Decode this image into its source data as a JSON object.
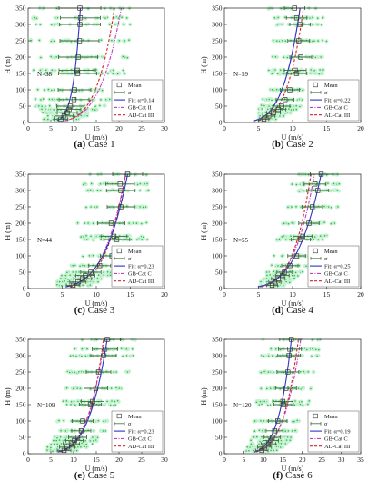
{
  "chart_data": [
    {
      "type": "scatter",
      "caption": {
        "letter": "(a)",
        "text": " Case 1"
      },
      "xlabel": "U (m/s)",
      "ylabel": "H (m)",
      "xlim": [
        0,
        30
      ],
      "ylim": [
        0,
        350
      ],
      "xticks": [
        0,
        5,
        10,
        15,
        20,
        25,
        30
      ],
      "yticks": [
        0,
        50,
        100,
        150,
        200,
        250,
        300,
        350
      ],
      "n_label": "N=38",
      "heights": [
        10,
        20,
        30,
        40,
        50,
        70,
        100,
        150,
        160,
        200,
        250,
        300,
        320,
        350
      ],
      "means": [
        7.2,
        7.9,
        8.6,
        9.0,
        9.3,
        10.1,
        10.2,
        10.9,
        10.8,
        11.0,
        11.3,
        11.4,
        11.5,
        11.4
      ],
      "sigma": [
        1.5,
        2.0,
        2.2,
        2.6,
        3.0,
        3.3,
        3.6,
        4.2,
        4.0,
        4.3,
        4.3,
        4.5,
        4.4,
        4.6
      ],
      "scatter_spread": [
        0,
        23
      ],
      "fit": {
        "alpha": 0.14,
        "u_ref": 11.5
      },
      "gb": {
        "alpha": 0.22,
        "u_ref": 20.5
      },
      "aij": {
        "alpha": 0.2,
        "u_ref": 19.0
      },
      "legend": {
        "position": "bottom-right",
        "mean": "Mean",
        "sigma": "σ",
        "fit": "Fit: α=0.14",
        "gb": "GB-Cat II",
        "aij": "AIJ-Cat III"
      }
    },
    {
      "type": "scatter",
      "caption": {
        "letter": "(b)",
        "text": " Case 2"
      },
      "xlabel": "U (m/s)",
      "ylabel": "H (m)",
      "xlim": [
        0,
        20
      ],
      "ylim": [
        0,
        350
      ],
      "xticks": [
        0,
        5,
        10,
        15,
        20
      ],
      "yticks": [
        0,
        50,
        100,
        150,
        200,
        250,
        300,
        350
      ],
      "n_label": "N=59",
      "heights": [
        10,
        20,
        30,
        40,
        50,
        70,
        100,
        150,
        160,
        200,
        250,
        300,
        320,
        350
      ],
      "means": [
        5.8,
        6.5,
        7.2,
        7.9,
        8.4,
        8.9,
        9.6,
        10.6,
        10.4,
        11.2,
        10.9,
        11.1,
        10.6,
        10.3
      ],
      "sigma": [
        0.7,
        0.9,
        1.0,
        1.1,
        1.2,
        1.3,
        1.4,
        1.5,
        1.6,
        1.6,
        1.6,
        1.5,
        1.5,
        1.5
      ],
      "scatter_spread": [
        5,
        15
      ],
      "fit": {
        "alpha": 0.22,
        "u_ref": 11.1
      },
      "gb": {
        "alpha": 0.22,
        "u_ref": 11.1
      },
      "aij": {
        "alpha": 0.2,
        "u_ref": 11.6
      },
      "legend": {
        "position": "bottom-right",
        "mean": "Mean",
        "sigma": "σ",
        "fit": "Fit: α=0.22",
        "gb": "GB-Cat C",
        "aij": "AIJ-Cat III"
      }
    },
    {
      "type": "scatter",
      "caption": {
        "letter": "(c)",
        "text": " Case 3"
      },
      "xlabel": "U (m/s)",
      "ylabel": "H (m)",
      "xlim": [
        0,
        20
      ],
      "ylim": [
        0,
        350
      ],
      "xticks": [
        0,
        5,
        10,
        15,
        20
      ],
      "yticks": [
        0,
        50,
        100,
        150,
        200,
        250,
        300,
        350
      ],
      "n_label": "N=44",
      "heights": [
        10,
        20,
        30,
        40,
        50,
        70,
        100,
        150,
        160,
        200,
        250,
        300,
        320,
        350
      ],
      "means": [
        6.6,
        7.3,
        8.0,
        8.4,
        9.2,
        10.5,
        12.3,
        13.0,
        12.6,
        12.2,
        13.6,
        13.6,
        13.5,
        14.6
      ],
      "sigma": [
        1.0,
        1.2,
        1.3,
        1.4,
        1.5,
        1.6,
        1.7,
        1.9,
        1.9,
        2.0,
        2.0,
        2.1,
        2.1,
        2.2
      ],
      "scatter_spread": [
        3,
        18
      ],
      "fit": {
        "alpha": 0.23,
        "u_ref": 14.6
      },
      "gb": {
        "alpha": 0.22,
        "u_ref": 14.3
      },
      "aij": {
        "alpha": 0.2,
        "u_ref": 14.3
      },
      "legend": {
        "position": "bottom-right",
        "mean": "Mean",
        "sigma": "σ",
        "fit": "Fit: α=0.23",
        "gb": "GB-Cat C",
        "aij": "AIJ-Cat III"
      }
    },
    {
      "type": "scatter",
      "caption": {
        "letter": "(d)",
        "text": " Case 4"
      },
      "xlabel": "U (m/s)",
      "ylabel": "H (m)",
      "xlim": [
        0,
        20
      ],
      "ylim": [
        0,
        350
      ],
      "xticks": [
        0,
        5,
        10,
        15,
        20
      ],
      "yticks": [
        0,
        50,
        100,
        150,
        200,
        250,
        300,
        350
      ],
      "n_label": "N=55",
      "heights": [
        10,
        20,
        30,
        40,
        50,
        70,
        100,
        150,
        160,
        200,
        250,
        300,
        320,
        350
      ],
      "means": [
        7.0,
        7.4,
        7.9,
        8.5,
        8.8,
        9.6,
        10.6,
        11.2,
        11.5,
        12.4,
        12.9,
        13.7,
        13.3,
        14.2
      ],
      "sigma": [
        0.8,
        0.9,
        1.0,
        1.0,
        1.1,
        1.2,
        1.3,
        1.4,
        1.4,
        1.5,
        1.5,
        1.6,
        1.6,
        1.6
      ],
      "scatter_spread": [
        5,
        17
      ],
      "fit": {
        "alpha": 0.25,
        "u_ref": 14.2
      },
      "gb": {
        "alpha": 0.22,
        "u_ref": 13.2
      },
      "aij": {
        "alpha": 0.2,
        "u_ref": 12.7
      },
      "legend": {
        "position": "bottom-right",
        "mean": "Mean",
        "sigma": "σ",
        "fit": "Fit: α=0.25",
        "gb": "GB-Cat C",
        "aij": "AIJ-Cat III"
      }
    },
    {
      "type": "scatter",
      "caption": {
        "letter": "(e)",
        "text": " Case 5"
      },
      "xlabel": "U (m/s)",
      "ylabel": "H (m)",
      "xlim": [
        0,
        30
      ],
      "ylim": [
        0,
        350
      ],
      "xticks": [
        0,
        5,
        10,
        15,
        20,
        25,
        30
      ],
      "yticks": [
        0,
        50,
        100,
        150,
        200,
        250,
        300,
        350
      ],
      "n_label": "N=109",
      "heights": [
        10,
        20,
        30,
        40,
        50,
        70,
        100,
        150,
        160,
        200,
        250,
        300,
        320,
        350
      ],
      "means": [
        7.9,
        8.6,
        9.5,
        10.2,
        10.9,
        11.7,
        12.0,
        13.7,
        14.2,
        14.9,
        15.5,
        16.6,
        16.9,
        17.4
      ],
      "sigma": [
        1.5,
        1.7,
        1.8,
        1.9,
        2.0,
        2.1,
        2.3,
        2.4,
        2.5,
        2.6,
        2.7,
        2.8,
        2.8,
        2.9
      ],
      "scatter_spread": [
        4,
        24
      ],
      "fit": {
        "alpha": 0.23,
        "u_ref": 17.4
      },
      "gb": {
        "alpha": 0.22,
        "u_ref": 16.8
      },
      "aij": {
        "alpha": 0.2,
        "u_ref": 16.6
      },
      "legend": {
        "position": "bottom-right",
        "mean": "Mean",
        "sigma": "σ",
        "fit": "Fit: α=0.23",
        "gb": "GB-Cat C",
        "aij": "AIJ-Cat III"
      }
    },
    {
      "type": "scatter",
      "caption": {
        "letter": "(f)",
        "text": " Case 6"
      },
      "xlabel": "U (m/s)",
      "ylabel": "H (m)",
      "xlim": [
        0,
        35
      ],
      "ylim": [
        0,
        350
      ],
      "xticks": [
        0,
        5,
        10,
        15,
        20,
        25,
        30,
        35
      ],
      "yticks": [
        0,
        50,
        100,
        150,
        200,
        250,
        300,
        350
      ],
      "n_label": "N=120",
      "heights": [
        10,
        20,
        30,
        40,
        50,
        70,
        100,
        150,
        160,
        200,
        250,
        300,
        320,
        350
      ],
      "means": [
        9.6,
        10.3,
        11.3,
        11.9,
        12.3,
        12.9,
        13.7,
        15.2,
        15.0,
        15.8,
        16.3,
        16.6,
        16.8,
        17.2
      ],
      "sigma": [
        1.6,
        1.8,
        1.9,
        2.0,
        2.1,
        2.2,
        2.4,
        2.5,
        2.6,
        2.7,
        2.8,
        2.9,
        2.9,
        3.0
      ],
      "scatter_spread": [
        5,
        27
      ],
      "fit": {
        "alpha": 0.19,
        "u_ref": 17.2
      },
      "gb": {
        "alpha": 0.22,
        "u_ref": 19.6
      },
      "aij": {
        "alpha": 0.2,
        "u_ref": 19.0
      },
      "legend": {
        "position": "bottom-right",
        "mean": "Mean",
        "sigma": "σ",
        "fit": "Fit: α=0.19",
        "gb": "GB-Cat C",
        "aij": "AIJ-Cat III"
      }
    }
  ],
  "colors": {
    "scatter_fill": "#c8f2d6",
    "scatter_dot": "#2fb83c",
    "fit": "#2a35c4",
    "gb": "#c23ec2",
    "aij": "#d2232a",
    "sigma": "#3e6e3e",
    "axis": "#222222"
  }
}
